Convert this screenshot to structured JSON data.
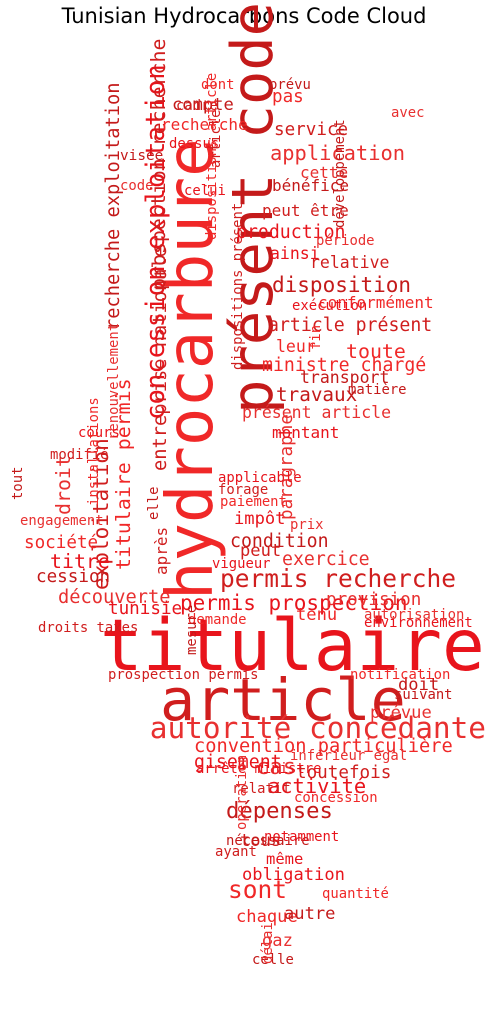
{
  "title": "Tunisian Hydrocarbons Code Cloud",
  "palette": [
    "#e8141c",
    "#d01e1e",
    "#f02828",
    "#c41a1a",
    "#e83030"
  ],
  "words": [
    {
      "text": "titulaire",
      "weight": 100,
      "vertical": false
    },
    {
      "text": "article",
      "weight": 82,
      "vertical": false
    },
    {
      "text": "hydrocarbure",
      "weight": 90,
      "vertical": true
    },
    {
      "text": "présent code",
      "weight": 80,
      "vertical": true
    },
    {
      "text": "autorité concédante",
      "weight": 38,
      "vertical": false
    },
    {
      "text": "concession exploitation",
      "weight": 32,
      "vertical": true
    },
    {
      "text": "permis recherche",
      "weight": 30,
      "vertical": false
    },
    {
      "text": "sont",
      "weight": 30,
      "vertical": false
    },
    {
      "text": "dépenses",
      "weight": 26,
      "vertical": false
    },
    {
      "text": "cas",
      "weight": 26,
      "vertical": false
    },
    {
      "text": "permis prospection",
      "weight": 24,
      "vertical": false
    },
    {
      "text": "exploitation",
      "weight": 24,
      "vertical": true
    },
    {
      "text": "titulaire permis",
      "weight": 22,
      "vertical": true
    },
    {
      "text": "disposition",
      "weight": 24,
      "vertical": false
    },
    {
      "text": "application",
      "weight": 23,
      "vertical": false
    },
    {
      "text": "activité",
      "weight": 23,
      "vertical": false
    },
    {
      "text": "prospection recherche",
      "weight": 22,
      "vertical": true
    },
    {
      "text": "toute",
      "weight": 22,
      "vertical": false
    },
    {
      "text": "travaux",
      "weight": 21,
      "vertical": false
    },
    {
      "text": "droit",
      "weight": 22,
      "vertical": true
    },
    {
      "text": "titre",
      "weight": 22,
      "vertical": false
    },
    {
      "text": "entreprise nationale",
      "weight": 20,
      "vertical": true
    },
    {
      "text": "convention particulière",
      "weight": 20,
      "vertical": false
    },
    {
      "text": "recherche exploitation",
      "weight": 20,
      "vertical": true
    },
    {
      "text": "découverte",
      "weight": 20,
      "vertical": false
    },
    {
      "text": "production",
      "weight": 19,
      "vertical": false
    },
    {
      "text": "article présent",
      "weight": 19,
      "vertical": false
    },
    {
      "text": "ministre chargé",
      "weight": 19,
      "vertical": false
    },
    {
      "text": "condition",
      "weight": 19,
      "vertical": false
    },
    {
      "text": "exercice",
      "weight": 19,
      "vertical": false
    },
    {
      "text": "gisement",
      "weight": 19,
      "vertical": false
    },
    {
      "text": "toutefois",
      "weight": 18,
      "vertical": false
    },
    {
      "text": "société",
      "weight": 18,
      "vertical": false
    },
    {
      "text": "cession",
      "weight": 18,
      "vertical": false
    },
    {
      "text": "provision",
      "weight": 18,
      "vertical": false
    },
    {
      "text": "tunisie",
      "weight": 18,
      "vertical": false
    },
    {
      "text": "service",
      "weight": 18,
      "vertical": false
    },
    {
      "text": "pas",
      "weight": 18,
      "vertical": false
    },
    {
      "text": "compte",
      "weight": 17,
      "vertical": false
    },
    {
      "text": "paragraphe",
      "weight": 18,
      "vertical": true
    },
    {
      "text": "impôt",
      "weight": 17,
      "vertical": false
    },
    {
      "text": "peut",
      "weight": 17,
      "vertical": false
    },
    {
      "text": "tenu",
      "weight": 17,
      "vertical": false
    },
    {
      "text": "doit",
      "weight": 17,
      "vertical": false
    },
    {
      "text": "prévue",
      "weight": 17,
      "vertical": false
    },
    {
      "text": "obligation",
      "weight": 17,
      "vertical": false
    },
    {
      "text": "tous",
      "weight": 17,
      "vertical": false
    },
    {
      "text": "chaque",
      "weight": 17,
      "vertical": false
    },
    {
      "text": "autre",
      "weight": 17,
      "vertical": false
    },
    {
      "text": "gaz",
      "weight": 17,
      "vertical": false
    },
    {
      "text": "ainsi",
      "weight": 16,
      "vertical": false
    },
    {
      "text": "relative",
      "weight": 16,
      "vertical": false
    },
    {
      "text": "leur",
      "weight": 16,
      "vertical": false
    },
    {
      "text": "transport",
      "weight": 16,
      "vertical": false
    },
    {
      "text": "présent article",
      "weight": 16,
      "vertical": false
    },
    {
      "text": "montant",
      "weight": 15,
      "vertical": false
    },
    {
      "text": "peut être",
      "weight": 15,
      "vertical": false
    },
    {
      "text": "conformément",
      "weight": 15,
      "vertical": false
    },
    {
      "text": "bénéfice",
      "weight": 15,
      "vertical": false
    },
    {
      "text": "cette",
      "weight": 15,
      "vertical": false
    },
    {
      "text": "même",
      "weight": 14,
      "vertical": false
    },
    {
      "text": "après",
      "weight": 15,
      "vertical": true
    },
    {
      "text": "recherche",
      "weight": 15,
      "vertical": false
    },
    {
      "text": "visée",
      "weight": 12,
      "vertical": false
    },
    {
      "text": "code",
      "weight": 11,
      "vertical": false
    },
    {
      "text": "dessus",
      "weight": 11,
      "vertical": false
    },
    {
      "text": "cadre",
      "weight": 11,
      "vertical": false
    },
    {
      "text": "dont",
      "weight": 11,
      "vertical": false
    },
    {
      "text": "prévu",
      "weight": 11,
      "vertical": false
    },
    {
      "text": "avec",
      "weight": 11,
      "vertical": false
    },
    {
      "text": "celui",
      "weight": 11,
      "vertical": false
    },
    {
      "text": "article",
      "weight": 11,
      "vertical": true
    },
    {
      "text": "dispositions article",
      "weight": 11,
      "vertical": true
    },
    {
      "text": "développement",
      "weight": 11,
      "vertical": true
    },
    {
      "text": "période",
      "weight": 11,
      "vertical": false
    },
    {
      "text": "exécution",
      "weight": 11,
      "vertical": false
    },
    {
      "text": "dispositions présent",
      "weight": 11,
      "vertical": true
    },
    {
      "text": "fin",
      "weight": 11,
      "vertical": true
    },
    {
      "text": "matière",
      "weight": 11,
      "vertical": false
    },
    {
      "text": "renouvellement",
      "weight": 11,
      "vertical": true
    },
    {
      "text": "cours",
      "weight": 11,
      "vertical": false
    },
    {
      "text": "modifié",
      "weight": 11,
      "vertical": false
    },
    {
      "text": "installations",
      "weight": 11,
      "vertical": true
    },
    {
      "text": "tout",
      "weight": 11,
      "vertical": true
    },
    {
      "text": "engagement",
      "weight": 11,
      "vertical": false
    },
    {
      "text": "applicable",
      "weight": 11,
      "vertical": false
    },
    {
      "text": "forage",
      "weight": 11,
      "vertical": false
    },
    {
      "text": "paiement",
      "weight": 11,
      "vertical": false
    },
    {
      "text": "elle",
      "weight": 11,
      "vertical": true
    },
    {
      "text": "prix",
      "weight": 11,
      "vertical": false
    },
    {
      "text": "vigueur",
      "weight": 11,
      "vertical": false
    },
    {
      "text": "droits taxes",
      "weight": 11,
      "vertical": false
    },
    {
      "text": "demande",
      "weight": 11,
      "vertical": false
    },
    {
      "text": "mesure",
      "weight": 11,
      "vertical": true
    },
    {
      "text": "autorisation",
      "weight": 11,
      "vertical": false
    },
    {
      "text": "environnement",
      "weight": 11,
      "vertical": false
    },
    {
      "text": "prospection permis",
      "weight": 11,
      "vertical": false
    },
    {
      "text": "notification",
      "weight": 11,
      "vertical": false
    },
    {
      "text": "suivant",
      "weight": 11,
      "vertical": false
    },
    {
      "text": "inférieur égal",
      "weight": 11,
      "vertical": false
    },
    {
      "text": "arrêté ministre",
      "weight": 11,
      "vertical": false
    },
    {
      "text": "relatif",
      "weight": 11,
      "vertical": false
    },
    {
      "text": "concession",
      "weight": 11,
      "vertical": false
    },
    {
      "text": "nécessaire",
      "weight": 11,
      "vertical": false
    },
    {
      "text": "opération",
      "weight": 11,
      "vertical": true
    },
    {
      "text": "notamment",
      "weight": 11,
      "vertical": false
    },
    {
      "text": "ayant",
      "weight": 11,
      "vertical": false
    },
    {
      "text": "quantité",
      "weight": 11,
      "vertical": false
    },
    {
      "text": "celle",
      "weight": 11,
      "vertical": false
    },
    {
      "text": "délai",
      "weight": 11,
      "vertical": true
    },
    {
      "text": "sans",
      "weight": 11,
      "vertical": false
    }
  ]
}
